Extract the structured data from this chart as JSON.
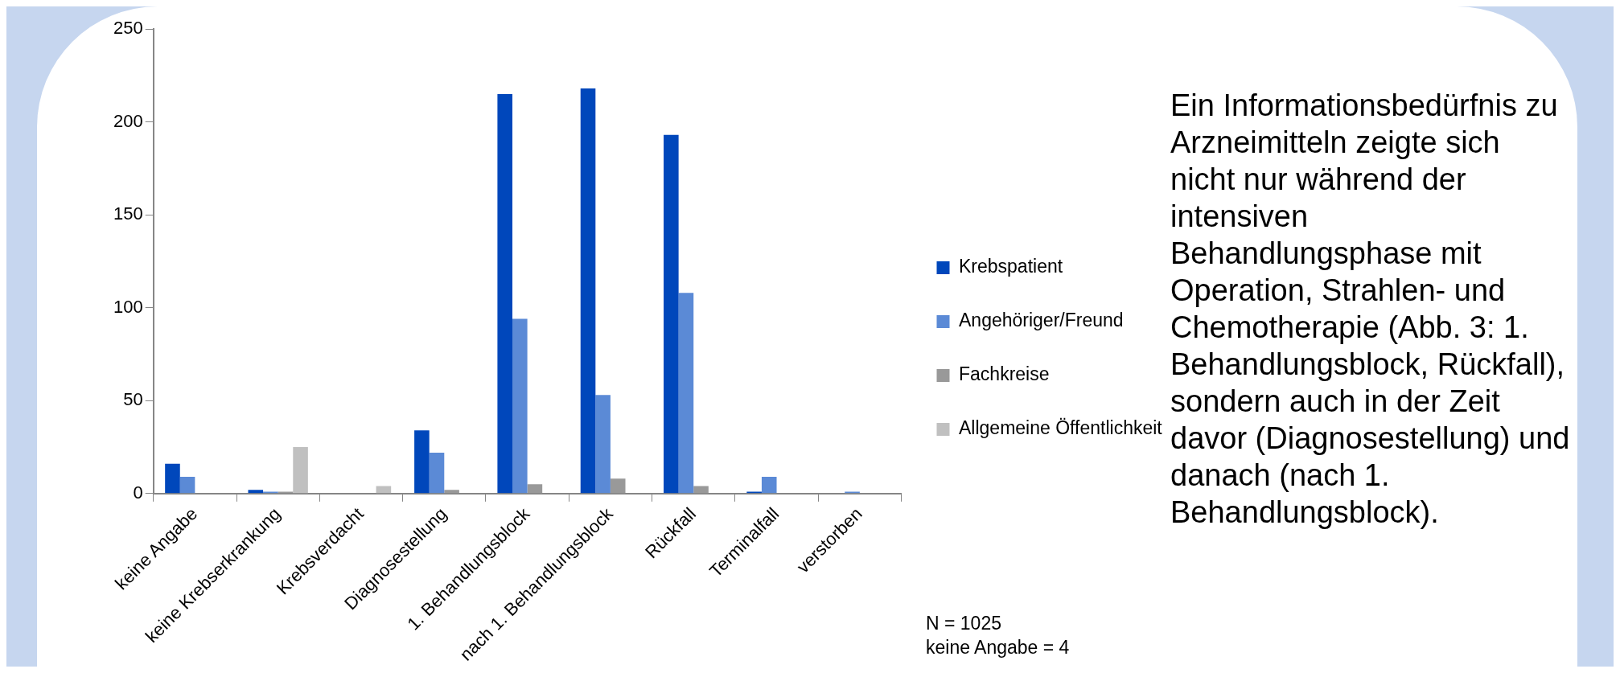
{
  "chart_data": {
    "type": "bar",
    "categories": [
      "keine Angabe",
      "keine Krebserkrankung",
      "Krebsverdacht",
      "Diagnosestellung",
      "1. Behandlungsblock",
      "nach 1. Behandlungsblock",
      "Rückfall",
      "Terminalfall",
      "verstorben"
    ],
    "series": [
      {
        "name": "Krebspatient",
        "color": "#0047bb",
        "values": [
          16,
          2,
          0,
          34,
          215,
          218,
          193,
          1,
          0
        ]
      },
      {
        "name": "Angehöriger/Freund",
        "color": "#5b8ad6",
        "values": [
          9,
          1,
          0,
          22,
          94,
          53,
          108,
          9,
          1
        ]
      },
      {
        "name": "Fachkreise",
        "color": "#999999",
        "values": [
          0,
          1,
          0,
          2,
          5,
          8,
          4,
          0,
          0
        ]
      },
      {
        "name": "Allgemeine Öffentlichkeit",
        "color": "#c0c0c0",
        "values": [
          0,
          25,
          4,
          0,
          0,
          0,
          0,
          0,
          0
        ]
      }
    ],
    "ylim": [
      0,
      250
    ],
    "yticks": [
      0,
      50,
      100,
      150,
      200,
      250
    ],
    "grid": false,
    "legend": "right",
    "annotations": [
      "Ein Informationsbedürfnis zu Arzneimitteln zeigte sich nicht nur während der intensiven Behandlungsphase mit Operation, Strahlen- und Chemotherapie (Abb. 3: 1. Behandlungsblock, Rückfall), sondern auch in der Zeit davor (Diagnosestellung) und danach (nach 1. Behandlungsblock).",
      "N = 1025",
      "keine Angabe = 4"
    ]
  }
}
